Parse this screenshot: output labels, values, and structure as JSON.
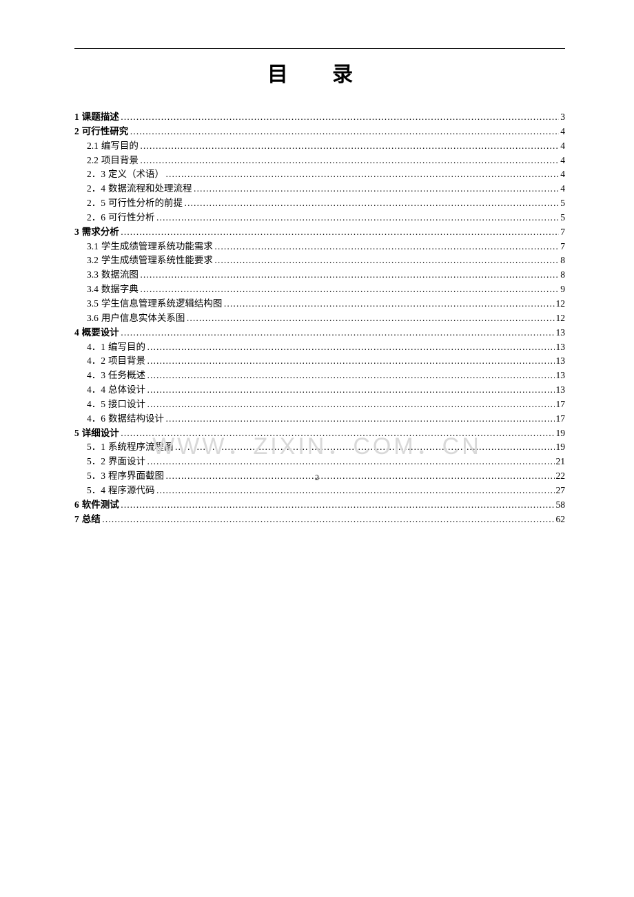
{
  "page": {
    "title": "目 录",
    "page_number": "2",
    "watermark": "WWW．ZIXIN．COM．CN"
  },
  "toc": [
    {
      "level": 1,
      "num": "1",
      "text": "课题描述",
      "page": "3"
    },
    {
      "level": 1,
      "num": "2",
      "text": "可行性研究",
      "page": "4"
    },
    {
      "level": 2,
      "num": "2.1",
      "text": "编写目的",
      "page": "4"
    },
    {
      "level": 2,
      "num": "2.2",
      "text": "项目背景",
      "page": "4"
    },
    {
      "level": 2,
      "num": "2．3",
      "text": "定义（术语）",
      "page": "4"
    },
    {
      "level": 2,
      "num": "2．4",
      "text": "数据流程和处理流程",
      "page": "4"
    },
    {
      "level": 2,
      "num": "2．5",
      "text": "可行性分析的前提",
      "page": "5"
    },
    {
      "level": 2,
      "num": "2．6",
      "text": "可行性分析",
      "page": "5"
    },
    {
      "level": 1,
      "num": "3",
      "text": "需求分析",
      "page": "7"
    },
    {
      "level": 2,
      "num": "3.1",
      "text": "学生成绩管理系统功能需求",
      "page": "7"
    },
    {
      "level": 2,
      "num": "3.2",
      "text": "学生成绩管理系统性能要求",
      "page": "8"
    },
    {
      "level": 2,
      "num": "3.3",
      "text": "数据流图",
      "page": "8"
    },
    {
      "level": 2,
      "num": "3.4",
      "text": "数据字典",
      "page": "9"
    },
    {
      "level": 2,
      "num": "3.5",
      "text": "学生信息管理系统逻辑结构图",
      "page": "12"
    },
    {
      "level": 2,
      "num": "3.6",
      "text": "用户信息实体关系图",
      "page": "12"
    },
    {
      "level": 1,
      "num": "4",
      "text": "概要设计",
      "page": "13"
    },
    {
      "level": 2,
      "num": "4．1",
      "text": "编写目的",
      "page": "13"
    },
    {
      "level": 2,
      "num": "4．2",
      "text": "项目背景",
      "page": "13"
    },
    {
      "level": 2,
      "num": "4．3",
      "text": "任务概述",
      "page": "13"
    },
    {
      "level": 2,
      "num": "4．4",
      "text": "总体设计",
      "page": "13"
    },
    {
      "level": 2,
      "num": "4．5",
      "text": "接口设计",
      "page": "17"
    },
    {
      "level": 2,
      "num": "4．6",
      "text": "数据结构设计",
      "page": "17"
    },
    {
      "level": 1,
      "num": "5",
      "text": "详细设计",
      "page": "19"
    },
    {
      "level": 2,
      "num": "5．1",
      "text": "系统程序流程图",
      "page": "19"
    },
    {
      "level": 2,
      "num": "5．2",
      "text": "界面设计",
      "page": "21"
    },
    {
      "level": 2,
      "num": "5．3",
      "text": "程序界面截图",
      "page": "22"
    },
    {
      "level": 2,
      "num": "5．4",
      "text": "程序源代码",
      "page": "27"
    },
    {
      "level": 1,
      "num": "6",
      "text": "软件测试",
      "page": "58"
    },
    {
      "level": 1,
      "num": "7",
      "text": "总结",
      "page": "62"
    }
  ]
}
